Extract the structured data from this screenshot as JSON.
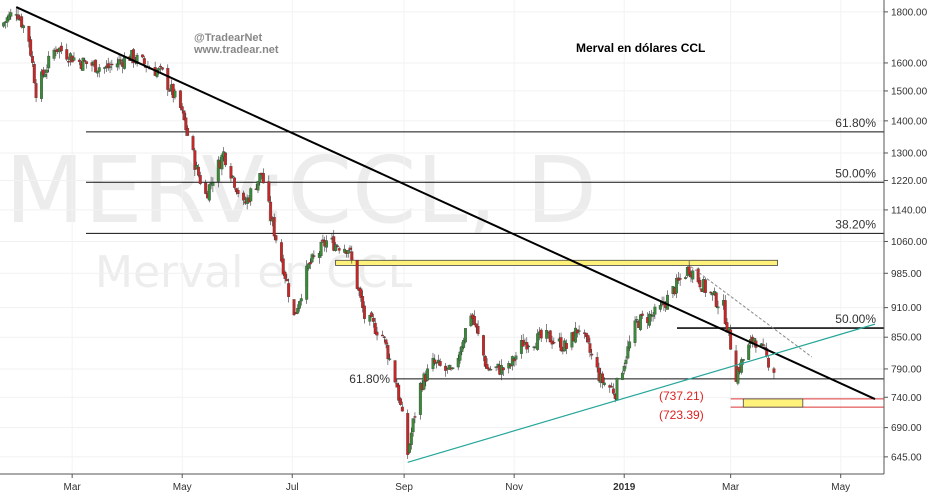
{
  "chart_data": {
    "type": "candlestick",
    "title": "Merval en dólares CCL",
    "credits": [
      "@TradearNet",
      "www.tradear.net"
    ],
    "watermark": {
      "symbol": "MERV:CCL, D",
      "name": "Merval en CCL"
    },
    "y_scale": "log",
    "ylim": [
      620,
      1850
    ],
    "y_ticks": [
      645,
      690,
      740,
      790,
      850,
      910,
      985,
      1060,
      1140,
      1220,
      1300,
      1400,
      1500,
      1600,
      1800
    ],
    "x_ticks": [
      "Mar",
      "May",
      "Jul",
      "Sep",
      "Nov",
      "2019",
      "Mar",
      "May"
    ],
    "xlim": [
      "2018-01-20",
      "2019-05-25"
    ],
    "fib_levels": [
      {
        "label": "61.80%",
        "value": 1365
      },
      {
        "label": "50.00%",
        "value": 1215
      },
      {
        "label": "38.20%",
        "value": 1080
      },
      {
        "label": "50.00%",
        "value": 868
      },
      {
        "label": "61.80%",
        "value": 772
      }
    ],
    "resistance_zone": {
      "low": 1003,
      "high": 1015
    },
    "support_zone": {
      "low": 723.39,
      "high": 737.21,
      "labels": [
        "(737.21)",
        "(723.39)"
      ]
    },
    "trendlines": [
      {
        "name": "downtrend",
        "points": [
          [
            "2018-01-29",
            1820
          ],
          [
            "2019-05-20",
            737
          ]
        ]
      },
      {
        "name": "uptrend",
        "points": [
          [
            "2018-09-03",
            637
          ],
          [
            "2019-05-20",
            876
          ]
        ]
      },
      {
        "name": "short-downtrend",
        "points": [
          [
            "2019-02-07",
            1000
          ],
          [
            "2019-04-15",
            812
          ]
        ]
      }
    ],
    "candles": []
  }
}
